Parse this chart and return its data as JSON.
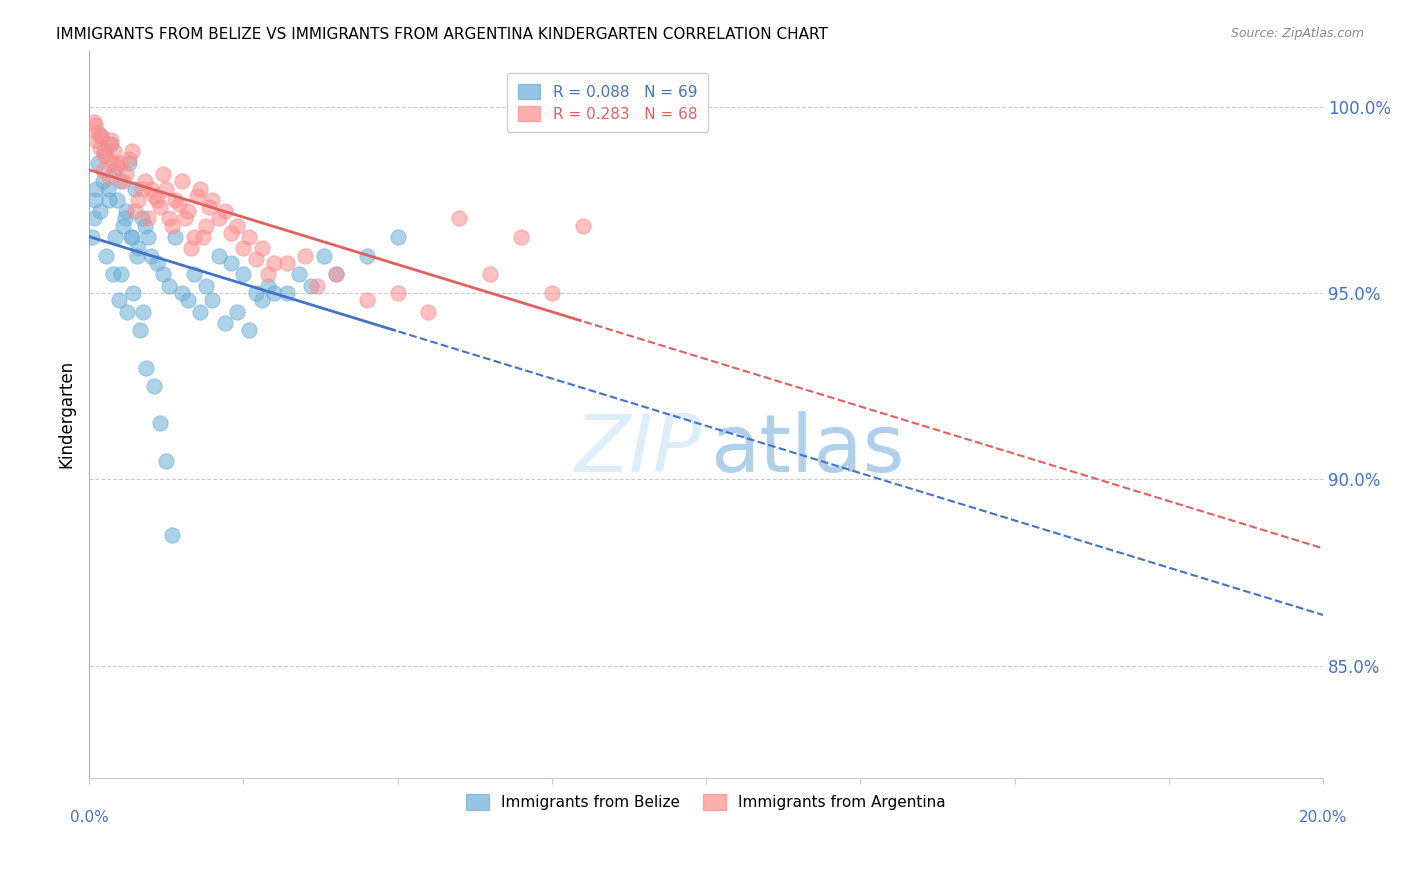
{
  "title": "IMMIGRANTS FROM BELIZE VS IMMIGRANTS FROM ARGENTINA KINDERGARTEN CORRELATION CHART",
  "source": "Source: ZipAtlas.com",
  "ylabel": "Kindergarten",
  "right_yticks": [
    85.0,
    90.0,
    95.0,
    100.0
  ],
  "right_ytick_labels": [
    "85.0%",
    "90.0%",
    "95.0%",
    "100.0%"
  ],
  "xmin": 0.0,
  "xmax": 20.0,
  "ymin": 82.0,
  "ymax": 101.5,
  "belize_color": "#6baed6",
  "argentina_color": "#fc8d8d",
  "belize_R": 0.088,
  "belize_N": 69,
  "argentina_R": 0.283,
  "argentina_N": 68,
  "belize_label": "Immigrants from Belize",
  "argentina_label": "Immigrants from Argentina",
  "title_fontsize": 11,
  "source_fontsize": 9,
  "legend_fontsize": 11,
  "axis_label_color": "#4472c4",
  "trend_blue": "#4472c4",
  "trend_pink": "#e06060",
  "scatter_size": 120,
  "belize_x": [
    0.1,
    0.15,
    0.2,
    0.25,
    0.3,
    0.35,
    0.4,
    0.45,
    0.5,
    0.55,
    0.6,
    0.65,
    0.7,
    0.75,
    0.8,
    0.85,
    0.9,
    0.95,
    1.0,
    1.1,
    1.2,
    1.3,
    1.4,
    1.5,
    1.6,
    1.7,
    1.8,
    1.9,
    2.0,
    2.1,
    2.2,
    2.3,
    2.4,
    2.5,
    2.6,
    2.7,
    2.8,
    2.9,
    3.0,
    3.2,
    3.4,
    3.6,
    3.8,
    4.0,
    4.5,
    5.0,
    0.05,
    0.08,
    0.12,
    0.18,
    0.22,
    0.28,
    0.32,
    0.38,
    0.42,
    0.48,
    0.52,
    0.58,
    0.62,
    0.68,
    0.72,
    0.78,
    0.82,
    0.88,
    0.92,
    1.05,
    1.15,
    1.25,
    1.35
  ],
  "belize_y": [
    97.5,
    98.5,
    99.2,
    98.8,
    97.8,
    99.0,
    98.3,
    97.5,
    98.0,
    96.8,
    97.2,
    98.5,
    96.5,
    97.8,
    96.2,
    97.0,
    96.8,
    96.5,
    96.0,
    95.8,
    95.5,
    95.2,
    96.5,
    95.0,
    94.8,
    95.5,
    94.5,
    95.2,
    94.8,
    96.0,
    94.2,
    95.8,
    94.5,
    95.5,
    94.0,
    95.0,
    94.8,
    95.2,
    95.0,
    95.0,
    95.5,
    95.2,
    96.0,
    95.5,
    96.0,
    96.5,
    96.5,
    97.0,
    97.8,
    97.2,
    98.0,
    96.0,
    97.5,
    95.5,
    96.5,
    94.8,
    95.5,
    97.0,
    94.5,
    96.5,
    95.0,
    96.0,
    94.0,
    94.5,
    93.0,
    92.5,
    91.5,
    90.5,
    88.5
  ],
  "argentina_x": [
    0.1,
    0.2,
    0.3,
    0.4,
    0.5,
    0.6,
    0.7,
    0.8,
    0.9,
    1.0,
    1.1,
    1.2,
    1.3,
    1.4,
    1.5,
    1.6,
    1.7,
    1.8,
    1.9,
    2.0,
    2.2,
    2.4,
    2.6,
    2.8,
    3.0,
    3.5,
    4.0,
    5.0,
    6.0,
    7.0,
    8.0,
    0.15,
    0.25,
    0.35,
    0.45,
    0.55,
    0.65,
    0.75,
    0.85,
    0.95,
    1.05,
    1.15,
    1.25,
    1.35,
    1.45,
    1.55,
    1.65,
    1.75,
    1.85,
    1.95,
    2.1,
    2.3,
    2.5,
    2.7,
    2.9,
    3.2,
    3.7,
    4.5,
    5.5,
    6.5,
    7.5,
    0.08,
    0.12,
    0.18,
    0.22,
    0.28,
    0.32,
    0.38
  ],
  "argentina_y": [
    99.5,
    99.2,
    99.0,
    98.8,
    98.5,
    98.2,
    98.8,
    97.5,
    98.0,
    97.8,
    97.5,
    98.2,
    97.0,
    97.5,
    98.0,
    97.2,
    96.5,
    97.8,
    96.8,
    97.5,
    97.2,
    96.8,
    96.5,
    96.2,
    95.8,
    96.0,
    95.5,
    95.0,
    97.0,
    96.5,
    96.8,
    99.3,
    98.7,
    99.1,
    98.4,
    98.0,
    98.6,
    97.2,
    97.8,
    97.0,
    97.6,
    97.3,
    97.8,
    96.8,
    97.4,
    97.0,
    96.2,
    97.6,
    96.5,
    97.3,
    97.0,
    96.6,
    96.2,
    95.9,
    95.5,
    95.8,
    95.2,
    94.8,
    94.5,
    95.5,
    95.0,
    99.6,
    99.1,
    98.9,
    98.3,
    98.7,
    98.1,
    98.5
  ]
}
